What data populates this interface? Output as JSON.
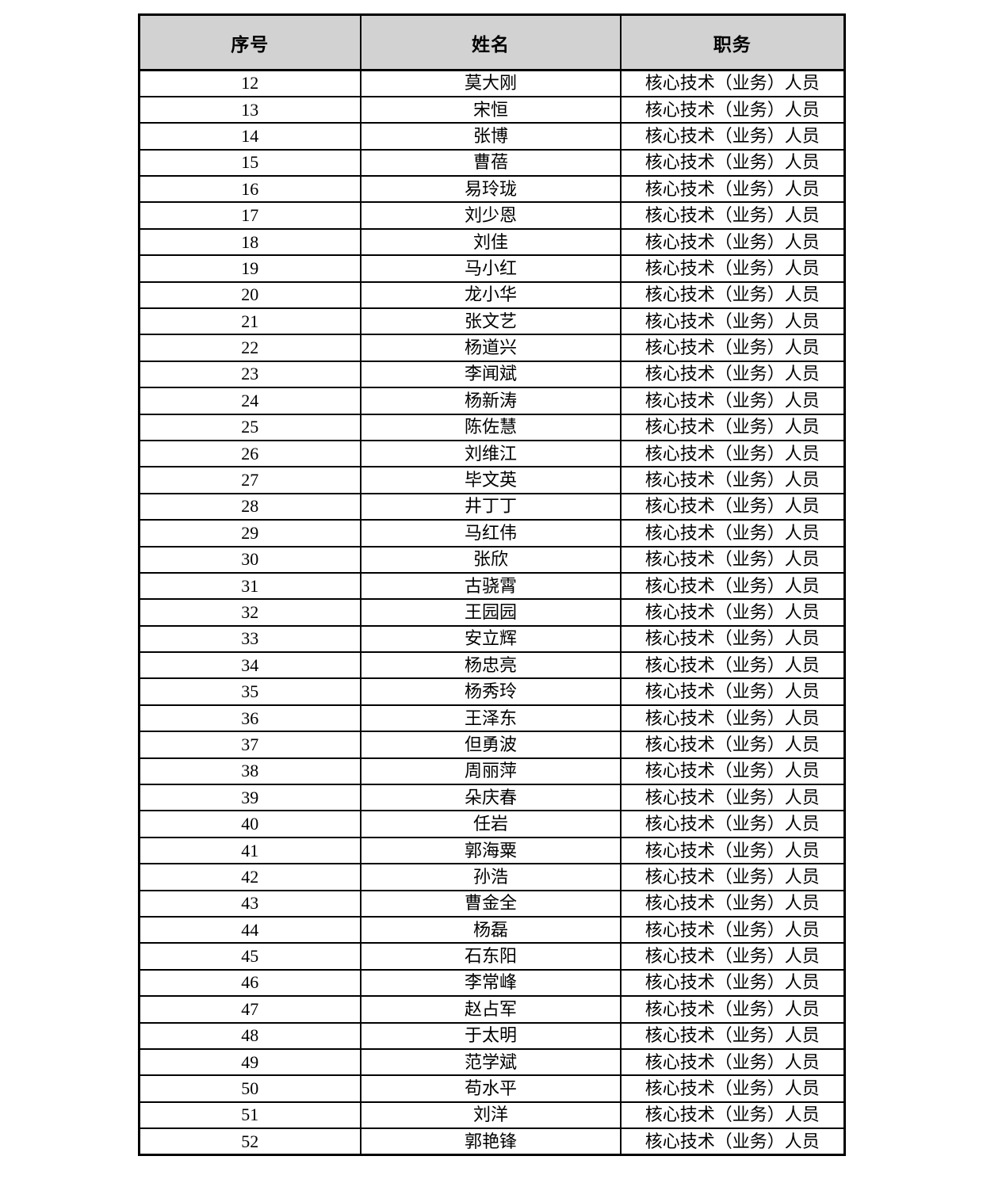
{
  "colors": {
    "header_bg": "#d2d2d2",
    "border": "#000000",
    "page_bg": "#ffffff",
    "text": "#000000"
  },
  "table": {
    "headers": [
      "序号",
      "姓名",
      "职务"
    ],
    "rows": [
      {
        "no": "12",
        "name": "莫大刚",
        "title": "核心技术（业务）人员"
      },
      {
        "no": "13",
        "name": "宋恒",
        "title": "核心技术（业务）人员"
      },
      {
        "no": "14",
        "name": "张博",
        "title": "核心技术（业务）人员"
      },
      {
        "no": "15",
        "name": "曹蓓",
        "title": "核心技术（业务）人员"
      },
      {
        "no": "16",
        "name": "易玲珑",
        "title": "核心技术（业务）人员"
      },
      {
        "no": "17",
        "name": "刘少恩",
        "title": "核心技术（业务）人员"
      },
      {
        "no": "18",
        "name": "刘佳",
        "title": "核心技术（业务）人员"
      },
      {
        "no": "19",
        "name": "马小红",
        "title": "核心技术（业务）人员"
      },
      {
        "no": "20",
        "name": "龙小华",
        "title": "核心技术（业务）人员"
      },
      {
        "no": "21",
        "name": "张文艺",
        "title": "核心技术（业务）人员"
      },
      {
        "no": "22",
        "name": "杨道兴",
        "title": "核心技术（业务）人员"
      },
      {
        "no": "23",
        "name": "李闻斌",
        "title": "核心技术（业务）人员"
      },
      {
        "no": "24",
        "name": "杨新涛",
        "title": "核心技术（业务）人员"
      },
      {
        "no": "25",
        "name": "陈佐慧",
        "title": "核心技术（业务）人员"
      },
      {
        "no": "26",
        "name": "刘维江",
        "title": "核心技术（业务）人员"
      },
      {
        "no": "27",
        "name": "毕文英",
        "title": "核心技术（业务）人员"
      },
      {
        "no": "28",
        "name": "井丁丁",
        "title": "核心技术（业务）人员"
      },
      {
        "no": "29",
        "name": "马红伟",
        "title": "核心技术（业务）人员"
      },
      {
        "no": "30",
        "name": "张欣",
        "title": "核心技术（业务）人员"
      },
      {
        "no": "31",
        "name": "古骁霄",
        "title": "核心技术（业务）人员"
      },
      {
        "no": "32",
        "name": "王园园",
        "title": "核心技术（业务）人员"
      },
      {
        "no": "33",
        "name": "安立辉",
        "title": "核心技术（业务）人员"
      },
      {
        "no": "34",
        "name": "杨忠亮",
        "title": "核心技术（业务）人员"
      },
      {
        "no": "35",
        "name": "杨秀玲",
        "title": "核心技术（业务）人员"
      },
      {
        "no": "36",
        "name": "王泽东",
        "title": "核心技术（业务）人员"
      },
      {
        "no": "37",
        "name": "但勇波",
        "title": "核心技术（业务）人员"
      },
      {
        "no": "38",
        "name": "周丽萍",
        "title": "核心技术（业务）人员"
      },
      {
        "no": "39",
        "name": "朵庆春",
        "title": "核心技术（业务）人员"
      },
      {
        "no": "40",
        "name": "任岩",
        "title": "核心技术（业务）人员"
      },
      {
        "no": "41",
        "name": "郭海粟",
        "title": "核心技术（业务）人员"
      },
      {
        "no": "42",
        "name": "孙浩",
        "title": "核心技术（业务）人员"
      },
      {
        "no": "43",
        "name": "曹金全",
        "title": "核心技术（业务）人员"
      },
      {
        "no": "44",
        "name": "杨磊",
        "title": "核心技术（业务）人员"
      },
      {
        "no": "45",
        "name": "石东阳",
        "title": "核心技术（业务）人员"
      },
      {
        "no": "46",
        "name": "李常峰",
        "title": "核心技术（业务）人员"
      },
      {
        "no": "47",
        "name": "赵占军",
        "title": "核心技术（业务）人员"
      },
      {
        "no": "48",
        "name": "于太明",
        "title": "核心技术（业务）人员"
      },
      {
        "no": "49",
        "name": "范学斌",
        "title": "核心技术（业务）人员"
      },
      {
        "no": "50",
        "name": "苟水平",
        "title": "核心技术（业务）人员"
      },
      {
        "no": "51",
        "name": "刘洋",
        "title": "核心技术（业务）人员"
      },
      {
        "no": "52",
        "name": "郭艳锋",
        "title": "核心技术（业务）人员"
      }
    ]
  }
}
